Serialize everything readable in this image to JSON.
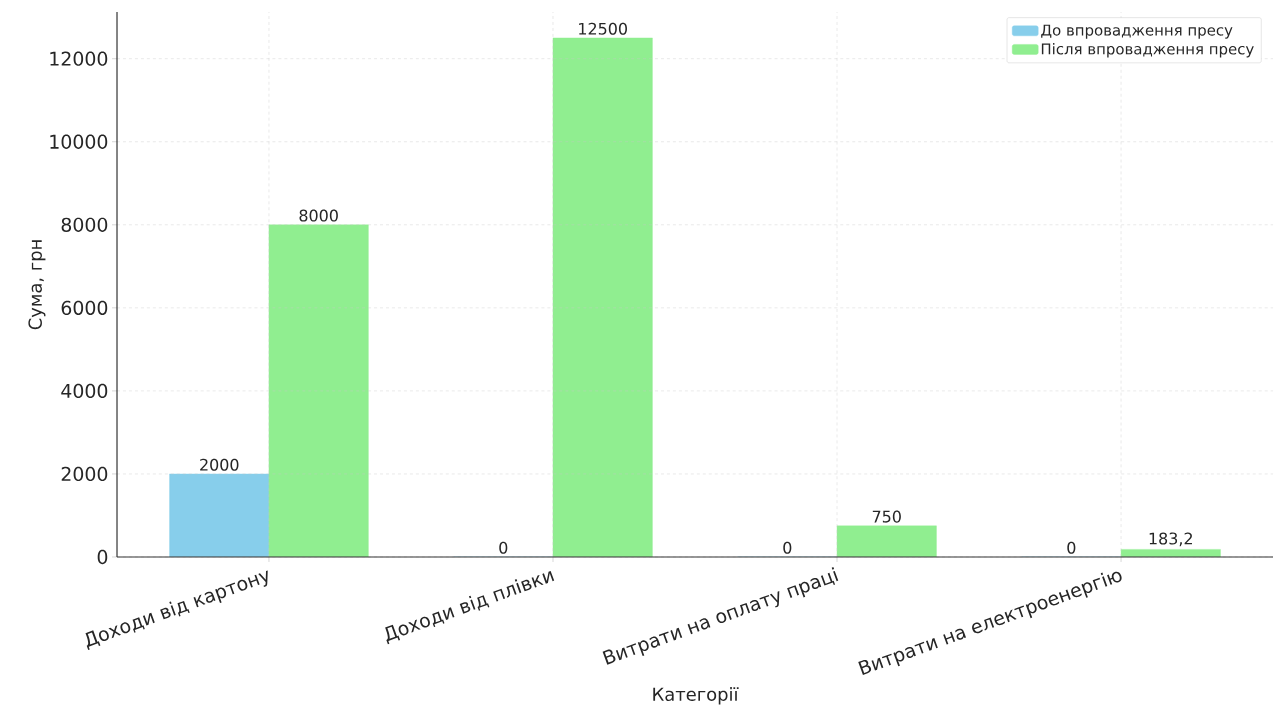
{
  "chart_data": {
    "type": "bar",
    "xlabel": "Категорії",
    "ylabel": "Сума, грн",
    "categories": [
      "Доходи від картону",
      "Доходи від плівки",
      "Витрати на оплату праці",
      "Витрати на електроенергію"
    ],
    "series": [
      {
        "name": "До впровадження пресу",
        "color": "#87ceeb",
        "values": [
          2000,
          0,
          0,
          0
        ],
        "value_labels": [
          "2000",
          "0",
          "0",
          "0"
        ]
      },
      {
        "name": "Після впровадження пресу",
        "color": "#90ee90",
        "values": [
          8000,
          12500,
          750,
          183.2
        ],
        "value_labels": [
          "8000",
          "12500",
          "750",
          "183,2"
        ]
      }
    ],
    "ylim": [
      0,
      13125
    ],
    "yticks": [
      0,
      2000,
      4000,
      6000,
      8000,
      10000,
      12000
    ],
    "grid": true,
    "legend": "top right"
  }
}
